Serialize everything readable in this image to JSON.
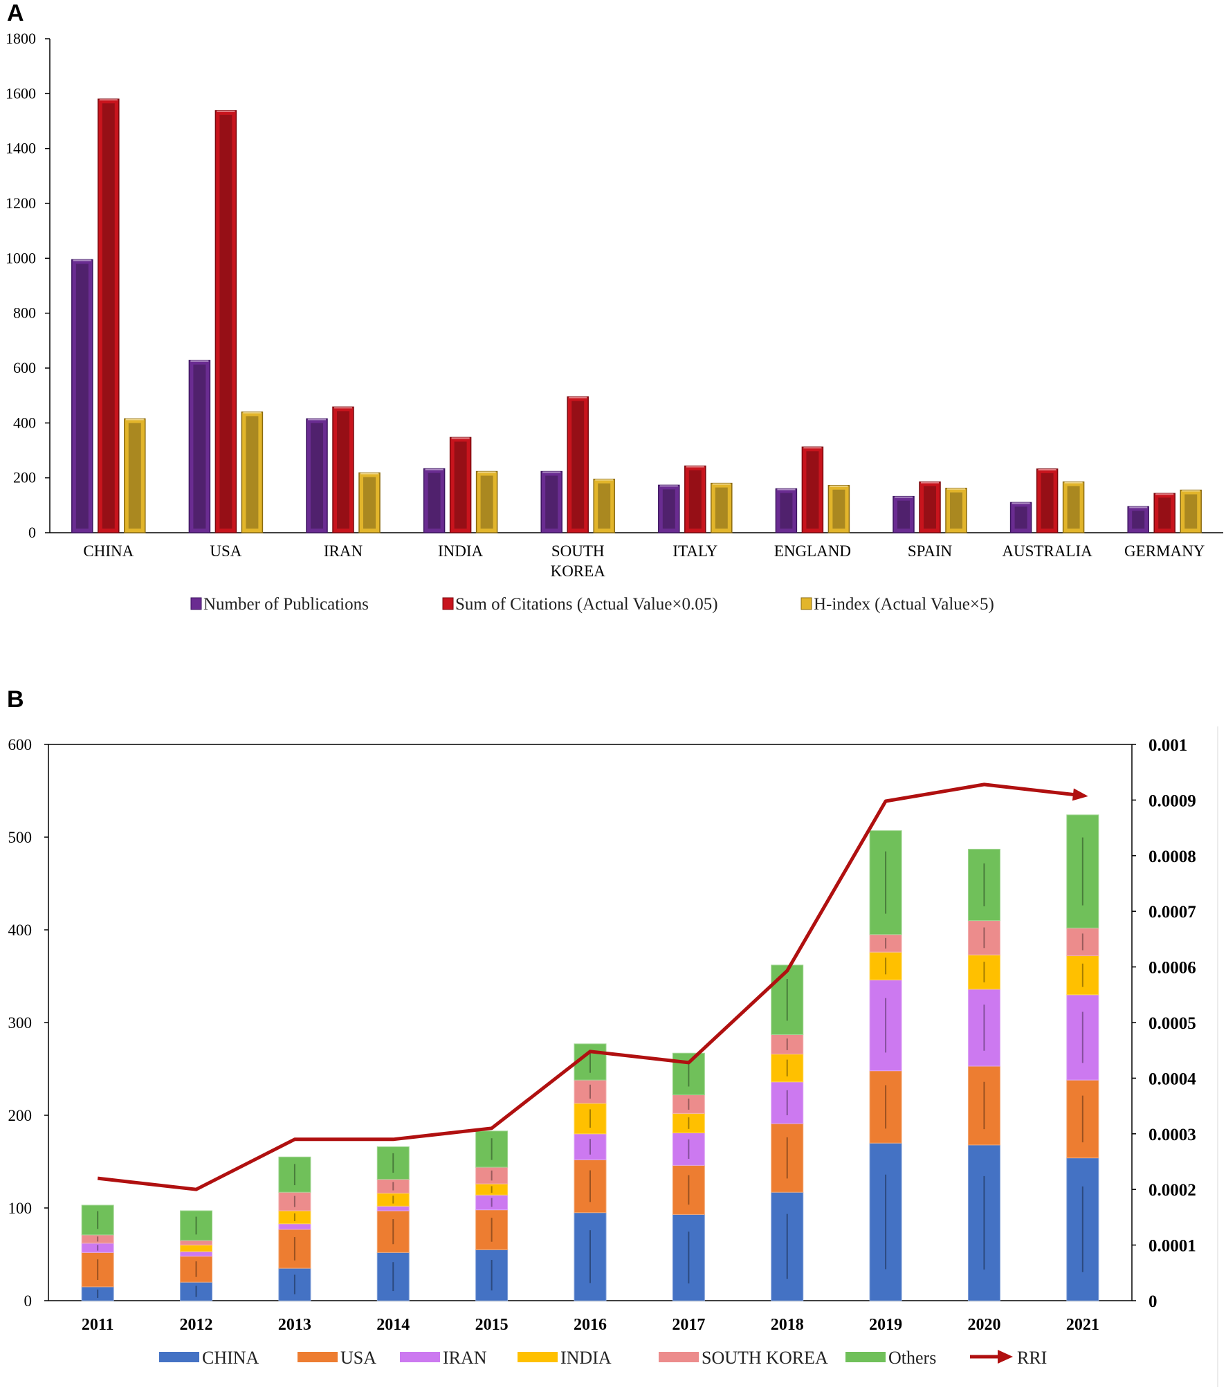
{
  "chart_data": [
    {
      "panel_label": "A",
      "type": "bar",
      "categories": [
        "CHINA",
        "USA",
        "IRAN",
        "INDIA",
        "SOUTH KOREA",
        "ITALY",
        "ENGLAND",
        "SPAIN",
        "AUSTRALIA",
        "GERMANY"
      ],
      "category_lines": [
        [
          "CHINA"
        ],
        [
          "USA"
        ],
        [
          "IRAN"
        ],
        [
          "INDIA"
        ],
        [
          "SOUTH",
          "KOREA"
        ],
        [
          "ITALY"
        ],
        [
          "ENGLAND"
        ],
        [
          "SPAIN"
        ],
        [
          "AUSTRALIA"
        ],
        [
          "GERMANY"
        ]
      ],
      "series": [
        {
          "name": "Number of Publications",
          "color": "#6a2c91",
          "dark": "#3d1560",
          "values": [
            995,
            628,
            415,
            233,
            223,
            173,
            160,
            132,
            110,
            95
          ]
        },
        {
          "name": "Sum of Citations (Actual Value×0.05)",
          "color": "#c8141d",
          "dark": "#7a080e",
          "values": [
            1580,
            1538,
            458,
            347,
            495,
            243,
            312,
            185,
            232,
            143
          ]
        },
        {
          "name": "H-index (Actual Value×5)",
          "color": "#e2b52b",
          "dark": "#8a6a10",
          "values": [
            415,
            440,
            218,
            223,
            195,
            180,
            172,
            162,
            185,
            155
          ]
        }
      ],
      "ylim": [
        0,
        1800
      ],
      "yticks": [
        0,
        200,
        400,
        600,
        800,
        1000,
        1200,
        1400,
        1600,
        1800
      ],
      "title": "",
      "xlabel": "",
      "ylabel": "",
      "legend_position": "bottom"
    },
    {
      "panel_label": "B",
      "type": "bar",
      "stacked": true,
      "categories": [
        "2011",
        "2012",
        "2013",
        "2014",
        "2015",
        "2016",
        "2017",
        "2018",
        "2019",
        "2020",
        "2021"
      ],
      "series": [
        {
          "name": "CHINA",
          "color": "#4472c4",
          "values": [
            15,
            20,
            35,
            52,
            55,
            95,
            93,
            117,
            170,
            168,
            154
          ]
        },
        {
          "name": "USA",
          "color": "#ed7d31",
          "values": [
            37,
            28,
            42,
            45,
            43,
            57,
            53,
            74,
            78,
            85,
            84
          ]
        },
        {
          "name": "IRAN",
          "color": "#cc79f0",
          "values": [
            10,
            5,
            6,
            5,
            16,
            28,
            35,
            45,
            98,
            83,
            92
          ]
        },
        {
          "name": "INDIA",
          "color": "#ffc000",
          "values": [
            0,
            7,
            14,
            14,
            12,
            33,
            21,
            30,
            30,
            37,
            42
          ]
        },
        {
          "name": "SOUTH KOREA",
          "color": "#ec8c8c",
          "values": [
            9,
            5,
            20,
            15,
            18,
            25,
            20,
            21,
            19,
            37,
            30
          ]
        },
        {
          "name": "Others",
          "color": "#70c05a",
          "values": [
            32,
            32,
            38,
            35,
            39,
            39,
            45,
            75,
            112,
            77,
            122
          ]
        }
      ],
      "line_series": {
        "name": "RRI",
        "color": "#b01010",
        "axis": "right",
        "values": [
          0.00022,
          0.0002,
          0.00029,
          0.00029,
          0.00031,
          0.000448,
          0.000428,
          0.000593,
          0.000898,
          0.000928,
          0.000908
        ]
      },
      "ylim": [
        0,
        600
      ],
      "yticks": [
        0,
        100,
        200,
        300,
        400,
        500,
        600
      ],
      "y2lim": [
        0,
        0.001
      ],
      "y2ticks": [
        "0",
        "0.0001",
        "0.0002",
        "0.0003",
        "0.0004",
        "0.0005",
        "0.0006",
        "0.0007",
        "0.0008",
        "0.0009",
        "0.001"
      ],
      "title": "",
      "xlabel": "",
      "ylabel": "",
      "legend_position": "bottom"
    }
  ]
}
